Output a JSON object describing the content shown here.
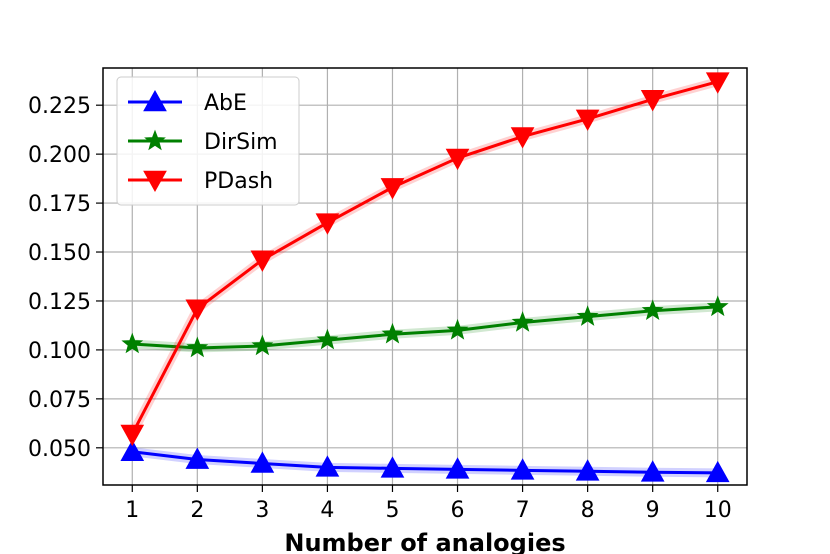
{
  "chart_data": {
    "type": "line",
    "title": "",
    "xlabel": "Number  of  analogies",
    "ylabel": "",
    "x": [
      1,
      2,
      3,
      4,
      5,
      6,
      7,
      8,
      9,
      10
    ],
    "xlim": [
      0.55,
      10.45
    ],
    "ylim": [
      0.031,
      0.244
    ],
    "xticks": [
      "1",
      "2",
      "3",
      "4",
      "5",
      "6",
      "7",
      "8",
      "9",
      "10"
    ],
    "yticks": [
      "0.050",
      "0.075",
      "0.100",
      "0.125",
      "0.150",
      "0.175",
      "0.200",
      "0.225"
    ],
    "grid": true,
    "legend": "top-left",
    "series": [
      {
        "name": "AbE",
        "color": "#0000ff",
        "marker": "triangle-up",
        "values": [
          0.048,
          0.044,
          0.042,
          0.04,
          0.0395,
          0.039,
          0.0385,
          0.038,
          0.0375,
          0.0372
        ]
      },
      {
        "name": "DirSim",
        "color": "#008000",
        "marker": "star",
        "values": [
          0.103,
          0.101,
          0.102,
          0.105,
          0.108,
          0.11,
          0.114,
          0.117,
          0.12,
          0.122
        ]
      },
      {
        "name": "PDash",
        "color": "#ff0000",
        "marker": "triangle-down",
        "values": [
          0.057,
          0.121,
          0.146,
          0.165,
          0.183,
          0.198,
          0.209,
          0.218,
          0.228,
          0.237
        ]
      }
    ]
  }
}
